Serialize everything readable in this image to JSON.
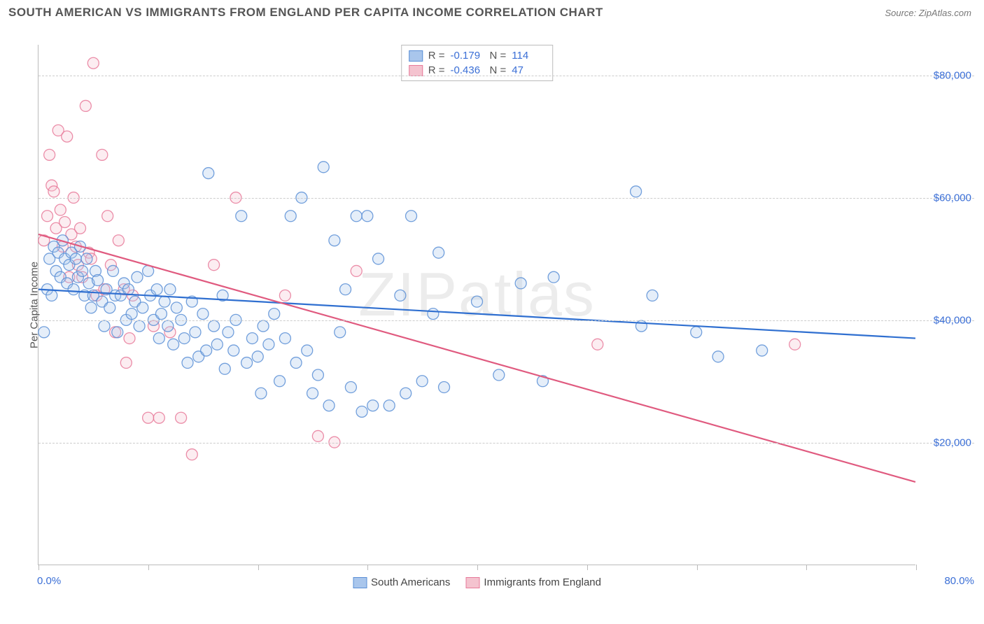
{
  "header": {
    "title": "SOUTH AMERICAN VS IMMIGRANTS FROM ENGLAND PER CAPITA INCOME CORRELATION CHART",
    "source_prefix": "Source: ",
    "source_name": "ZipAtlas.com"
  },
  "watermark": "ZIPatlas",
  "chart": {
    "type": "scatter",
    "ylabel": "Per Capita Income",
    "x_domain": [
      0,
      80
    ],
    "y_domain": [
      0,
      85000
    ],
    "x_ticks": [
      0,
      10,
      20,
      30,
      40,
      50,
      60,
      70,
      80
    ],
    "x_tick_labels": {
      "start": "0.0%",
      "end": "80.0%"
    },
    "y_gridlines": [
      20000,
      40000,
      60000,
      80000
    ],
    "y_tick_labels": [
      "$20,000",
      "$40,000",
      "$60,000",
      "$80,000"
    ],
    "background_color": "#ffffff",
    "grid_color": "#cccccc",
    "axis_color": "#bbbbbb",
    "title_fontsize": 17,
    "label_fontsize": 15,
    "tick_label_color": "#3b6fd6",
    "marker_radius": 8,
    "marker_fill_opacity": 0.3,
    "marker_stroke_opacity": 0.85,
    "marker_stroke_width": 1.3,
    "trend_line_width": 2.2,
    "series": [
      {
        "key": "south_americans",
        "label": "South Americans",
        "color_fill": "#a9c6ec",
        "color_stroke": "#5a8fd6",
        "trend_color": "#2f6fd0",
        "R": -0.179,
        "N": 114,
        "trend": {
          "x1": 0,
          "y1": 45000,
          "x2": 80,
          "y2": 37000
        },
        "points": [
          [
            0.5,
            38000
          ],
          [
            0.8,
            45000
          ],
          [
            1.0,
            50000
          ],
          [
            1.2,
            44000
          ],
          [
            1.4,
            52000
          ],
          [
            1.6,
            48000
          ],
          [
            1.8,
            51000
          ],
          [
            2.0,
            47000
          ],
          [
            2.2,
            53000
          ],
          [
            2.4,
            50000
          ],
          [
            2.6,
            46000
          ],
          [
            2.8,
            49000
          ],
          [
            3.0,
            51000
          ],
          [
            3.2,
            45000
          ],
          [
            3.4,
            50000
          ],
          [
            3.6,
            47000
          ],
          [
            3.8,
            52000
          ],
          [
            4.0,
            48000
          ],
          [
            4.2,
            44000
          ],
          [
            4.4,
            50000
          ],
          [
            4.6,
            46000
          ],
          [
            4.8,
            42000
          ],
          [
            5.0,
            44000
          ],
          [
            5.2,
            48000
          ],
          [
            5.4,
            46500
          ],
          [
            5.8,
            43000
          ],
          [
            6.0,
            39000
          ],
          [
            6.2,
            45000
          ],
          [
            6.5,
            42000
          ],
          [
            6.8,
            48000
          ],
          [
            7.0,
            44000
          ],
          [
            7.2,
            38000
          ],
          [
            7.5,
            44000
          ],
          [
            7.8,
            46000
          ],
          [
            8.0,
            40000
          ],
          [
            8.2,
            45000
          ],
          [
            8.5,
            41000
          ],
          [
            8.8,
            43000
          ],
          [
            9.0,
            47000
          ],
          [
            9.2,
            39000
          ],
          [
            9.5,
            42000
          ],
          [
            10.0,
            48000
          ],
          [
            10.2,
            44000
          ],
          [
            10.5,
            40000
          ],
          [
            10.8,
            45000
          ],
          [
            11.0,
            37000
          ],
          [
            11.2,
            41000
          ],
          [
            11.5,
            43000
          ],
          [
            11.8,
            39000
          ],
          [
            12.0,
            45000
          ],
          [
            12.3,
            36000
          ],
          [
            12.6,
            42000
          ],
          [
            13.0,
            40000
          ],
          [
            13.3,
            37000
          ],
          [
            13.6,
            33000
          ],
          [
            14.0,
            43000
          ],
          [
            14.3,
            38000
          ],
          [
            14.6,
            34000
          ],
          [
            15.0,
            41000
          ],
          [
            15.5,
            64000
          ],
          [
            15.3,
            35000
          ],
          [
            16.0,
            39000
          ],
          [
            16.3,
            36000
          ],
          [
            16.8,
            44000
          ],
          [
            17.0,
            32000
          ],
          [
            17.3,
            38000
          ],
          [
            17.8,
            35000
          ],
          [
            18.0,
            40000
          ],
          [
            18.5,
            57000
          ],
          [
            19.0,
            33000
          ],
          [
            19.5,
            37000
          ],
          [
            20.0,
            34000
          ],
          [
            20.3,
            28000
          ],
          [
            20.5,
            39000
          ],
          [
            21.0,
            36000
          ],
          [
            21.5,
            41000
          ],
          [
            22.0,
            30000
          ],
          [
            22.5,
            37000
          ],
          [
            23.0,
            57000
          ],
          [
            23.5,
            33000
          ],
          [
            24.0,
            60000
          ],
          [
            24.5,
            35000
          ],
          [
            25.0,
            28000
          ],
          [
            25.5,
            31000
          ],
          [
            26.0,
            65000
          ],
          [
            26.5,
            26000
          ],
          [
            27.0,
            53000
          ],
          [
            27.5,
            38000
          ],
          [
            28.0,
            45000
          ],
          [
            28.5,
            29000
          ],
          [
            29.0,
            57000
          ],
          [
            29.5,
            25000
          ],
          [
            30.5,
            26000
          ],
          [
            31.0,
            50000
          ],
          [
            30.0,
            57000
          ],
          [
            32.0,
            26000
          ],
          [
            33.0,
            44000
          ],
          [
            33.5,
            28000
          ],
          [
            34.0,
            57000
          ],
          [
            35.0,
            30000
          ],
          [
            36.0,
            41000
          ],
          [
            36.5,
            51000
          ],
          [
            37.0,
            29000
          ],
          [
            40.0,
            43000
          ],
          [
            42.0,
            31000
          ],
          [
            44.0,
            46000
          ],
          [
            46.0,
            30000
          ],
          [
            47.0,
            47000
          ],
          [
            54.5,
            61000
          ],
          [
            55.0,
            39000
          ],
          [
            56.0,
            44000
          ],
          [
            60.0,
            38000
          ],
          [
            62.0,
            34000
          ],
          [
            66.0,
            35000
          ]
        ]
      },
      {
        "key": "immigrants_england",
        "label": "Immigrants from England",
        "color_fill": "#f4c3cf",
        "color_stroke": "#e77a9a",
        "trend_color": "#e05a7f",
        "R": -0.436,
        "N": 47,
        "trend": {
          "x1": 0,
          "y1": 54000,
          "x2": 80,
          "y2": 13500
        },
        "points": [
          [
            0.5,
            53000
          ],
          [
            0.8,
            57000
          ],
          [
            1.0,
            67000
          ],
          [
            1.2,
            62000
          ],
          [
            1.4,
            61000
          ],
          [
            1.6,
            55000
          ],
          [
            1.8,
            71000
          ],
          [
            2.0,
            58000
          ],
          [
            2.2,
            52000
          ],
          [
            2.4,
            56000
          ],
          [
            2.6,
            70000
          ],
          [
            2.8,
            47000
          ],
          [
            3.0,
            54000
          ],
          [
            3.2,
            60000
          ],
          [
            3.4,
            52000
          ],
          [
            3.6,
            49000
          ],
          [
            3.8,
            55000
          ],
          [
            4.0,
            47000
          ],
          [
            4.3,
            75000
          ],
          [
            4.6,
            51000
          ],
          [
            4.8,
            50000
          ],
          [
            5.0,
            82000
          ],
          [
            5.3,
            44000
          ],
          [
            5.8,
            67000
          ],
          [
            6.0,
            45000
          ],
          [
            6.3,
            57000
          ],
          [
            6.6,
            49000
          ],
          [
            7.0,
            38000
          ],
          [
            7.3,
            53000
          ],
          [
            7.8,
            45000
          ],
          [
            8.0,
            33000
          ],
          [
            8.3,
            37000
          ],
          [
            8.6,
            44000
          ],
          [
            10.0,
            24000
          ],
          [
            10.5,
            39000
          ],
          [
            11.0,
            24000
          ],
          [
            12.0,
            38000
          ],
          [
            13.0,
            24000
          ],
          [
            14.0,
            18000
          ],
          [
            16.0,
            49000
          ],
          [
            18.0,
            60000
          ],
          [
            22.5,
            44000
          ],
          [
            25.5,
            21000
          ],
          [
            27.0,
            20000
          ],
          [
            29.0,
            48000
          ],
          [
            51.0,
            36000
          ],
          [
            69.0,
            36000
          ]
        ]
      }
    ],
    "stats_legend": {
      "rows": [
        {
          "series": "south_americans",
          "r_label": "R =",
          "r_value": "-0.179",
          "n_label": "N =",
          "n_value": "114"
        },
        {
          "series": "immigrants_england",
          "r_label": "R =",
          "r_value": "-0.436",
          "n_label": "N =",
          "n_value": "47"
        }
      ]
    }
  }
}
